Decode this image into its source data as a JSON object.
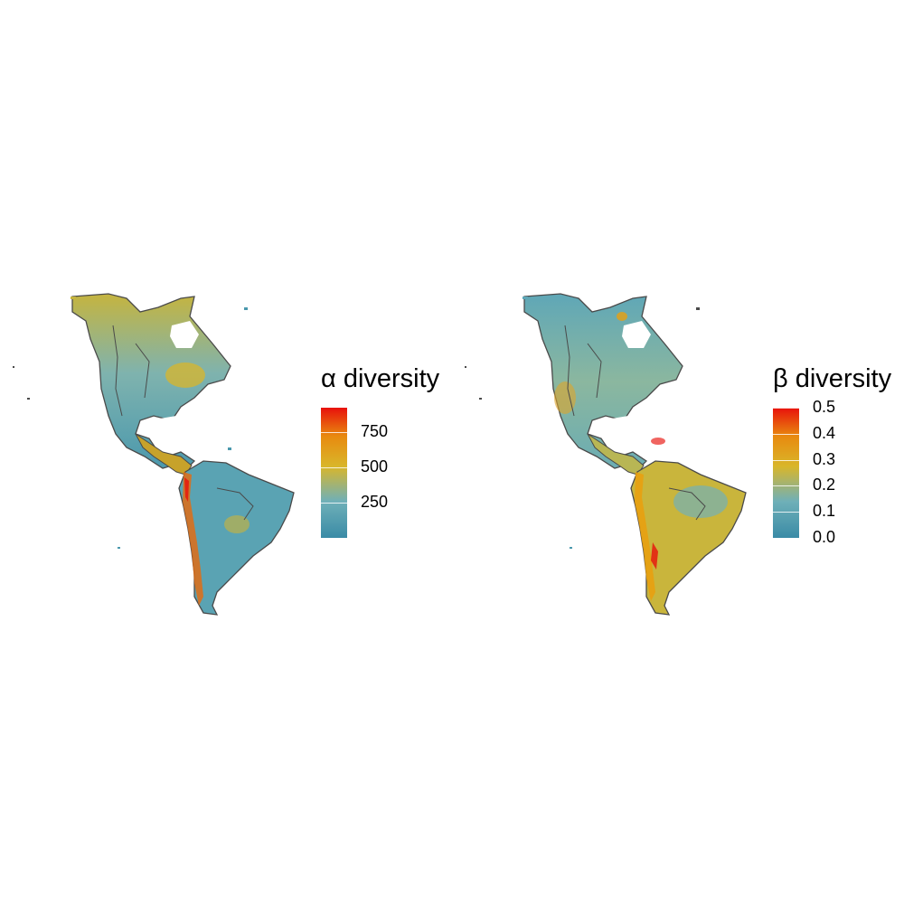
{
  "panels": [
    {
      "id": "alpha",
      "legend_title": "α diversity",
      "scale": {
        "min": 0,
        "max": 920,
        "ticks": [
          250,
          500,
          750
        ]
      },
      "tick_labels": [
        "750",
        "500",
        "250"
      ]
    },
    {
      "id": "beta",
      "legend_title": "β diversity",
      "scale": {
        "min": 0.0,
        "max": 0.5,
        "ticks": [
          0.0,
          0.1,
          0.2,
          0.3,
          0.4,
          0.5
        ]
      },
      "tick_labels": [
        "0.5",
        "0.4",
        "0.3",
        "0.2",
        "0.1",
        "0.0"
      ]
    }
  ],
  "colors": {
    "low": "#3a8ba6",
    "mid_low": "#6fb0b8",
    "mid": "#d9b62a",
    "high_mid": "#e88a0f",
    "high": "#e8110b",
    "outline": "#4a4a4a"
  }
}
